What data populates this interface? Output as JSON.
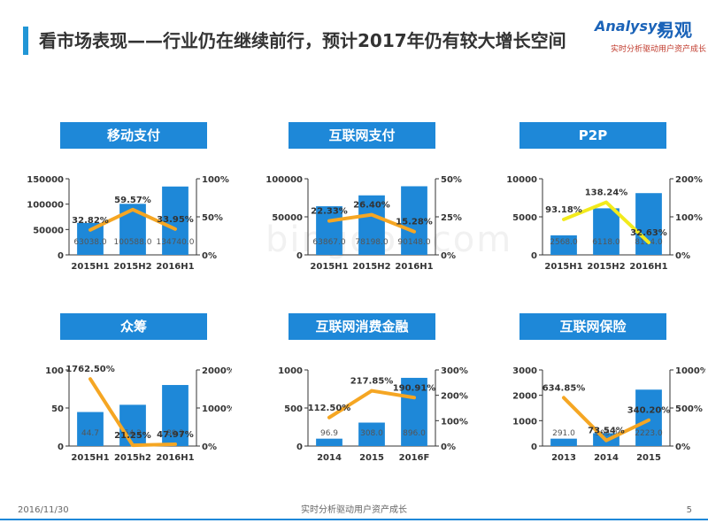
{
  "page": {
    "title": "看市场表现——行业仍在继续前行，预计2017年仍有较大增长空间",
    "logo_brand": "Analysys",
    "logo_brand_cn": "易观",
    "logo_slogan": "实时分析驱动用户资产成长",
    "watermark": "bingdoc.com",
    "footer_date": "2016/11/30",
    "footer_slogan": "实时分析驱动用户资产成长",
    "footer_page": "5"
  },
  "colors": {
    "accent": "#1e88d8",
    "bar": "#1e88d8",
    "line_orange": "#f5a623",
    "line_yellow": "#f2ea1c"
  },
  "chart_data": [
    {
      "type": "bar",
      "title": "移动支付",
      "categories": [
        "2015H1",
        "2015H2",
        "2016H1"
      ],
      "series": [
        {
          "kind": "bar",
          "values": [
            63038.0,
            100588.0,
            134740.0
          ],
          "labels": [
            "63038.0",
            "100588.0",
            "134740.0"
          ]
        },
        {
          "kind": "line",
          "axis": "right",
          "values": [
            32.82,
            59.57,
            33.95
          ],
          "labels": [
            "32.82%",
            "59.57%",
            "33.95%"
          ],
          "color": "#f5a623"
        }
      ],
      "ylim": [
        0,
        150000
      ],
      "yticks": [
        0,
        50000,
        100000,
        150000
      ],
      "ytick_labels": [
        "0",
        "50000",
        "100000",
        "150000"
      ],
      "y2lim": [
        0,
        100
      ],
      "y2ticks": [
        0,
        50,
        100
      ],
      "y2tick_labels": [
        "0%",
        "50%",
        "100%"
      ]
    },
    {
      "type": "bar",
      "title": "互联网支付",
      "categories": [
        "2015H1",
        "2015H2",
        "2016H1"
      ],
      "series": [
        {
          "kind": "bar",
          "values": [
            63867.0,
            78198.0,
            90148.0
          ],
          "labels": [
            "63867.0",
            "78198.0",
            "90148.0"
          ]
        },
        {
          "kind": "line",
          "axis": "right",
          "values": [
            22.33,
            26.4,
            15.28
          ],
          "labels": [
            "22.33%",
            "26.40%",
            "15.28%"
          ],
          "color": "#f5a623"
        }
      ],
      "ylim": [
        0,
        100000
      ],
      "yticks": [
        0,
        50000,
        100000
      ],
      "ytick_labels": [
        "0",
        "50000",
        "100000"
      ],
      "y2lim": [
        0,
        50
      ],
      "y2ticks": [
        0,
        25,
        50
      ],
      "y2tick_labels": [
        "0%",
        "25%",
        "50%"
      ]
    },
    {
      "type": "bar",
      "title": "P2P",
      "categories": [
        "2015H1",
        "2015H2",
        "2016H1"
      ],
      "series": [
        {
          "kind": "bar",
          "values": [
            2568.0,
            6118.0,
            8114.0
          ],
          "labels": [
            "2568.0",
            "6118.0",
            "8114.0"
          ]
        },
        {
          "kind": "line",
          "axis": "right",
          "values": [
            93.18,
            138.24,
            32.63
          ],
          "labels": [
            "93.18%",
            "138.24%",
            "32.63%"
          ],
          "color": "#f2ea1c"
        }
      ],
      "ylim": [
        0,
        10000
      ],
      "yticks": [
        0,
        5000,
        10000
      ],
      "ytick_labels": [
        "0",
        "5000",
        "10000"
      ],
      "y2lim": [
        0,
        200
      ],
      "y2ticks": [
        0,
        100,
        200
      ],
      "y2tick_labels": [
        "0%",
        "100%",
        "200%"
      ]
    },
    {
      "type": "bar",
      "title": "众筹",
      "categories": [
        "2015H1",
        "2015h2",
        "2016H1"
      ],
      "series": [
        {
          "kind": "bar",
          "values": [
            44.7,
            54.2,
            80.2
          ],
          "labels": [
            "44.7",
            "54.2",
            "80.2"
          ]
        },
        {
          "kind": "line",
          "axis": "right",
          "values": [
            1762.5,
            21.25,
            47.97
          ],
          "labels": [
            "1762.50%",
            "21.25%",
            "47.97%"
          ],
          "color": "#f5a623"
        }
      ],
      "ylim": [
        0,
        100
      ],
      "yticks": [
        0,
        50,
        100
      ],
      "ytick_labels": [
        "0",
        "50",
        "100"
      ],
      "y2lim": [
        0,
        2000
      ],
      "y2ticks": [
        0,
        1000,
        2000
      ],
      "y2tick_labels": [
        "0%",
        "1000%",
        "2000%"
      ]
    },
    {
      "type": "bar",
      "title": "互联网消费金融",
      "categories": [
        "2014",
        "2015",
        "2016F"
      ],
      "series": [
        {
          "kind": "bar",
          "values": [
            96.9,
            308.0,
            896.0
          ],
          "labels": [
            "96.9",
            "308.0",
            "896.0"
          ]
        },
        {
          "kind": "line",
          "axis": "right",
          "values": [
            112.5,
            217.85,
            190.91
          ],
          "labels": [
            "112.50%",
            "217.85%",
            "190.91%"
          ],
          "color": "#f5a623"
        }
      ],
      "ylim": [
        0,
        1000
      ],
      "yticks": [
        0,
        500,
        1000
      ],
      "ytick_labels": [
        "0",
        "500",
        "1000"
      ],
      "y2lim": [
        0,
        300
      ],
      "y2ticks": [
        0,
        100,
        200,
        300
      ],
      "y2tick_labels": [
        "0%",
        "100%",
        "200%",
        "300%"
      ]
    },
    {
      "type": "bar",
      "title": "互联网保险",
      "categories": [
        "2013",
        "2014",
        "2015"
      ],
      "series": [
        {
          "kind": "bar",
          "values": [
            291.0,
            505.0,
            2223.0
          ],
          "labels": [
            "291.0",
            "505.0",
            "2223.0"
          ]
        },
        {
          "kind": "line",
          "axis": "right",
          "values": [
            634.85,
            73.54,
            340.2
          ],
          "labels": [
            "634.85%",
            "73.54%",
            "340.20%"
          ],
          "color": "#f5a623"
        }
      ],
      "ylim": [
        0,
        3000
      ],
      "yticks": [
        0,
        1000,
        2000,
        3000
      ],
      "ytick_labels": [
        "0",
        "1000",
        "2000",
        "3000"
      ],
      "y2lim": [
        0,
        1000
      ],
      "y2ticks": [
        0,
        500,
        1000
      ],
      "y2tick_labels": [
        "0%",
        "500%",
        "1000%"
      ]
    }
  ]
}
